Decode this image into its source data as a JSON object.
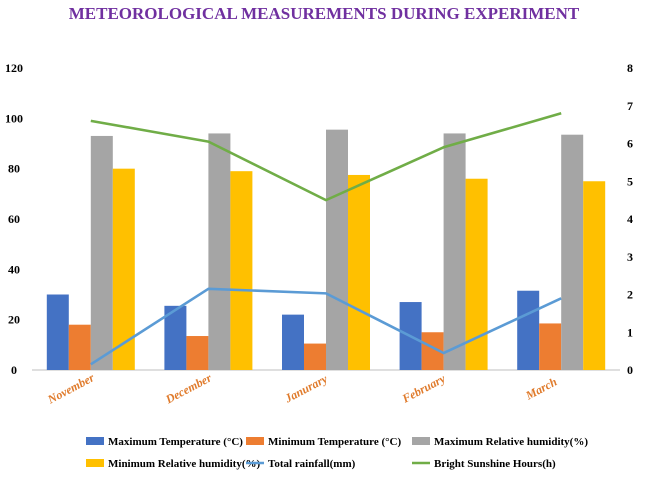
{
  "chart_data": {
    "type": "bar",
    "title": "METEOROLOGICAL MEASUREMENTS DURING EXPERIMENT",
    "categories": [
      "November",
      "December",
      "Janurary",
      "February",
      "March"
    ],
    "ylim_left": [
      0,
      120
    ],
    "yticks_left": [
      0,
      20,
      40,
      60,
      80,
      100,
      120
    ],
    "ylim_right": [
      0,
      8
    ],
    "yticks_right": [
      0,
      1,
      2,
      3,
      4,
      5,
      6,
      7,
      8
    ],
    "grid": false,
    "legend_position": "bottom",
    "series": [
      {
        "name": "Maximum Temperature (°C)",
        "type": "bar",
        "axis": "left",
        "color": "#4472c4",
        "values": [
          30,
          25.5,
          22,
          27,
          31.5
        ]
      },
      {
        "name": "Minimum Temperature (°C)",
        "type": "bar",
        "axis": "left",
        "color": "#ed7d31",
        "values": [
          18,
          13.5,
          10.5,
          15,
          18.5
        ]
      },
      {
        "name": "Maximum Relative humidity(%)",
        "type": "bar",
        "axis": "left",
        "color": "#a5a5a5",
        "values": [
          93,
          94,
          95.5,
          94,
          93.5
        ]
      },
      {
        "name": "Minimum Relative humidity(%)",
        "type": "bar",
        "axis": "left",
        "color": "#ffc000",
        "values": [
          80,
          79,
          77.5,
          76,
          75
        ]
      },
      {
        "name": "Total rainfall(mm)",
        "type": "line",
        "axis": "right",
        "color": "#5b9bd5",
        "values": [
          0.15,
          2.15,
          2.03,
          0.45,
          1.9
        ]
      },
      {
        "name": "Bright Sunshine Hours(h)",
        "type": "line",
        "axis": "right",
        "color": "#70ad47",
        "values": [
          6.6,
          6.05,
          4.5,
          5.9,
          6.8
        ]
      }
    ]
  }
}
